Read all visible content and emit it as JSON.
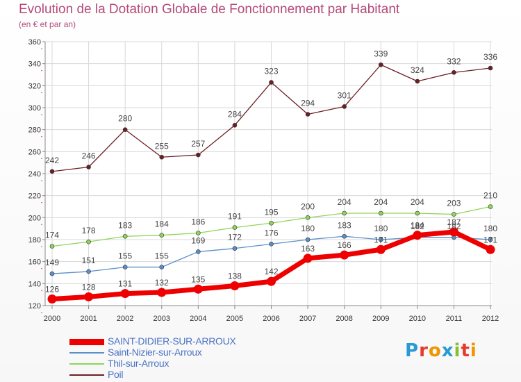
{
  "chart_data": {
    "type": "line",
    "title": "Evolution de la Dotation Globale de Fonctionnement par Habitant",
    "subtitle": "(en € et par an)",
    "x": [
      "2000",
      "2001",
      "2002",
      "2003",
      "2004",
      "2005",
      "2006",
      "2007",
      "2008",
      "2009",
      "2010",
      "2011",
      "2012"
    ],
    "ylim": [
      120,
      360
    ],
    "yticks": [
      120,
      140,
      160,
      180,
      200,
      220,
      240,
      260,
      280,
      300,
      320,
      340,
      360
    ],
    "grid": true,
    "legend_position": "bottom-left",
    "series": [
      {
        "name": "SAINT-DIDIER-SUR-ARROUX",
        "color": "#ee0000",
        "values": [
          126,
          128,
          131,
          132,
          135,
          138,
          142,
          163,
          166,
          171,
          184,
          187,
          171
        ]
      },
      {
        "name": "Saint-Nizier-sur-Arroux",
        "color": "#5b8fc7",
        "values": [
          149,
          151,
          155,
          155,
          169,
          172,
          176,
          180,
          183,
          180,
          182,
          182,
          180
        ]
      },
      {
        "name": "Thil-sur-Arroux",
        "color": "#8fd45a",
        "values": [
          174,
          178,
          183,
          184,
          186,
          191,
          195,
          200,
          204,
          204,
          204,
          203,
          210
        ]
      },
      {
        "name": "Poil",
        "color": "#6b1f24",
        "values": [
          242,
          246,
          280,
          255,
          257,
          284,
          323,
          294,
          301,
          339,
          324,
          332,
          336
        ]
      }
    ]
  },
  "logo": {
    "text": "Proxiti",
    "colors": [
      "#2a9ad4",
      "#e53b2c",
      "#f29400",
      "#2a9ad4",
      "#8bbd32",
      "#e53b2c",
      "#f29400"
    ]
  }
}
